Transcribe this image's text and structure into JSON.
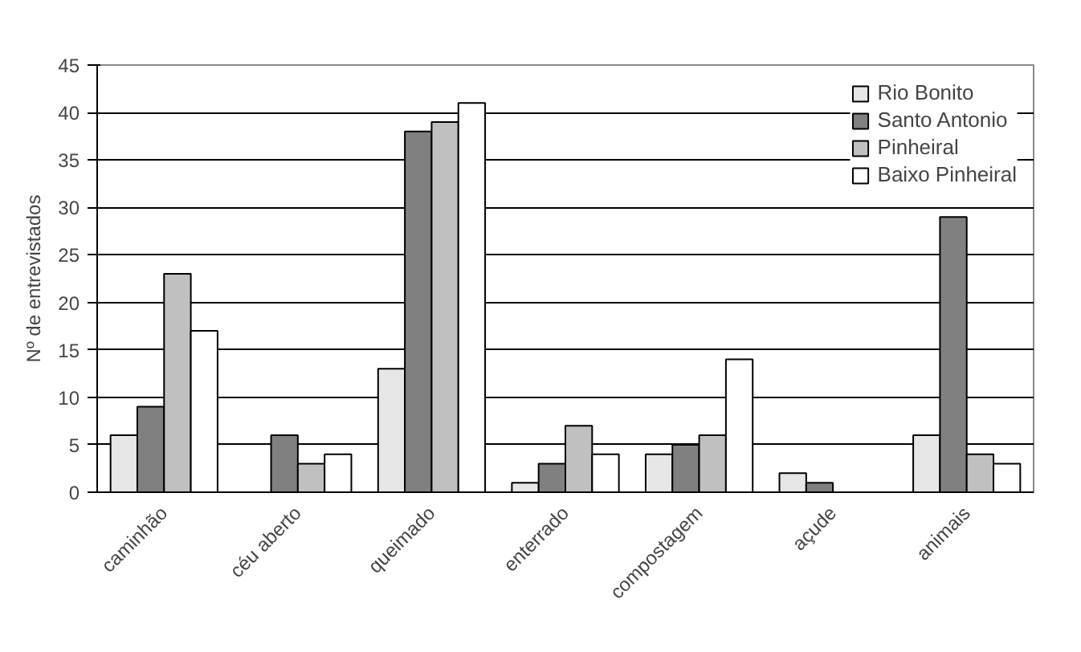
{
  "chart_data": {
    "type": "bar",
    "ylabel": "Nº de entrevistados",
    "categories": [
      "caminhão",
      "céu aberto",
      "queimado",
      "enterrado",
      "compostagem",
      "açude",
      "animais"
    ],
    "series": [
      {
        "name": "Rio Bonito",
        "color": "#e6e6e6",
        "values": [
          6,
          0,
          13,
          1,
          4,
          2,
          6
        ]
      },
      {
        "name": "Santo Antonio",
        "color": "#808080",
        "values": [
          9,
          6,
          38,
          3,
          5,
          1,
          29
        ]
      },
      {
        "name": "Pinheiral",
        "color": "#c0c0c0",
        "values": [
          23,
          3,
          39,
          7,
          6,
          0,
          4
        ]
      },
      {
        "name": "Baixo Pinheiral",
        "color": "#ffffff",
        "values": [
          17,
          4,
          41,
          4,
          14,
          0,
          3
        ]
      }
    ],
    "ylim": [
      0,
      45
    ],
    "yticks": [
      0,
      5,
      10,
      15,
      20,
      25,
      30,
      35,
      40,
      45
    ],
    "grid": "y",
    "legend": "top right"
  }
}
